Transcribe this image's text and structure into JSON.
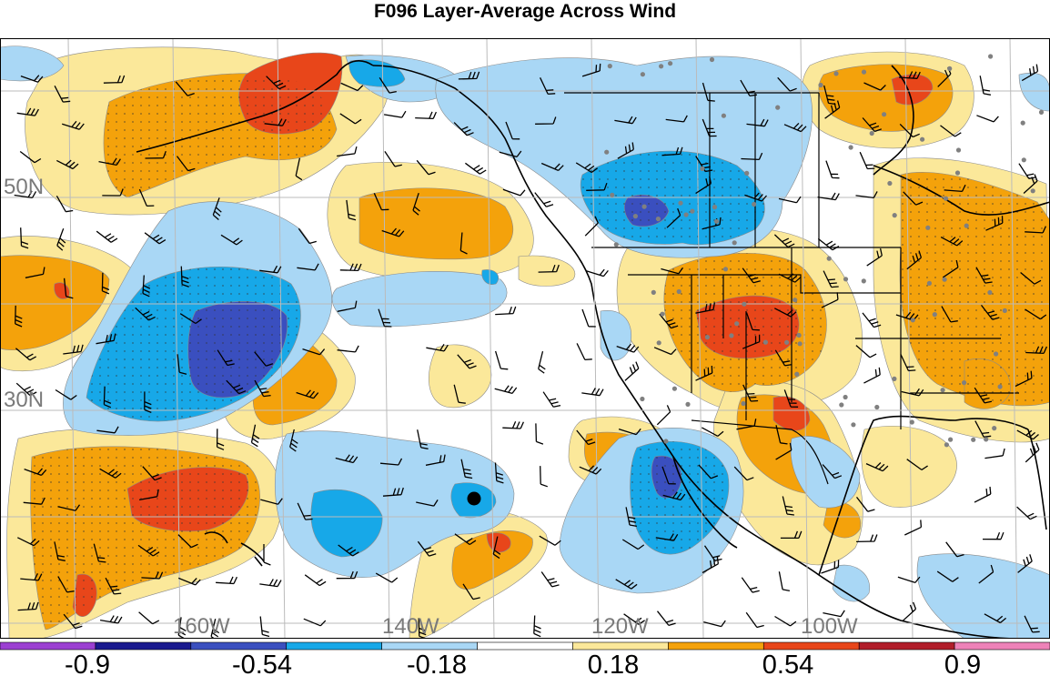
{
  "title": "F096 Layer-Average Across Wind",
  "map": {
    "lat_labels": [
      {
        "text": "50N",
        "lat": 50
      },
      {
        "text": "30N",
        "lat": 30
      }
    ],
    "lon_labels": [
      {
        "text": "160W",
        "lon": -160
      },
      {
        "text": "140W",
        "lon": -140
      },
      {
        "text": "120W",
        "lon": -120
      },
      {
        "text": "100W",
        "lon": -100
      }
    ]
  },
  "colorbar": {
    "colors": [
      "#9b3fd2",
      "#1a1a8f",
      "#3a4fbf",
      "#17a8e8",
      "#a9d7f5",
      "#ffffff",
      "#fbe89a",
      "#f4a20b",
      "#e8461a",
      "#b11d2a",
      "#ee82b8"
    ],
    "labels": [
      "-0.9",
      "-0.54",
      "-0.18",
      "0.18",
      "0.54",
      "0.9"
    ]
  },
  "palette": {
    "neg_light": "#a9d7f5",
    "neg_mid": "#17a8e8",
    "neg_dark": "#3a4fbf",
    "pos_light": "#fbe89a",
    "pos_mid": "#f4a20b",
    "pos_dark": "#e8461a",
    "grid": "#bbbbbb",
    "coast": "#000000"
  },
  "marker": {
    "name": "station-dot"
  }
}
